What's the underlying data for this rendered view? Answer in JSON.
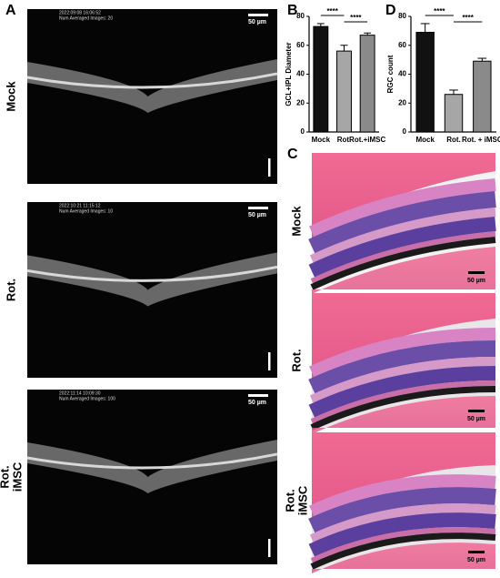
{
  "panel_labels": [
    "A",
    "B",
    "C",
    "D"
  ],
  "oct_rows": [
    {
      "label_lines": [
        "Mock"
      ],
      "timestamp": "2022:09:08 16:06:52",
      "averaged": "Num Averaged Images: 20",
      "scale": "50 µm"
    },
    {
      "label_lines": [
        "Rot."
      ],
      "timestamp": "2022:10:21 11:15:12",
      "averaged": "Num Averaged Images: 10",
      "scale": "50 µm"
    },
    {
      "label_lines": [
        "Rot.",
        "iMSC"
      ],
      "timestamp": "2022:11:14 10:09:30",
      "averaged": "Num Averaged Images: 100",
      "scale": "50 µm"
    }
  ],
  "histology_rows": [
    {
      "label_lines": [
        "Mock"
      ],
      "scale": "50 µm"
    },
    {
      "label_lines": [
        "Rot."
      ],
      "scale": "50 µm"
    },
    {
      "label_lines": [
        "Rot.",
        "iMSC"
      ],
      "scale": "50 µm"
    }
  ],
  "chart_data": [
    {
      "type": "bar",
      "ylabel": "GCL+IPL Diameter",
      "categories": [
        "Mock",
        "Rot.",
        "Rot.+iMSC"
      ],
      "values": [
        73,
        56,
        67
      ],
      "errors": [
        2,
        4,
        1.5
      ],
      "colors": [
        "#111111",
        "#a6a6a6",
        "#8a8a8a"
      ],
      "ylim": [
        0,
        80
      ],
      "yticks": [
        0,
        20,
        40,
        60,
        80
      ],
      "annotations": [
        "****",
        "****"
      ]
    },
    {
      "type": "bar",
      "ylabel": "RGC count",
      "categories": [
        "Mock",
        "Rot.",
        "Rot. + iMSC"
      ],
      "values": [
        69,
        26,
        49
      ],
      "errors": [
        6,
        3,
        2
      ],
      "colors": [
        "#111111",
        "#a6a6a6",
        "#8a8a8a"
      ],
      "ylim": [
        0,
        80
      ],
      "yticks": [
        0,
        20,
        40,
        60,
        80
      ],
      "annotations": [
        "****",
        "****"
      ]
    }
  ]
}
